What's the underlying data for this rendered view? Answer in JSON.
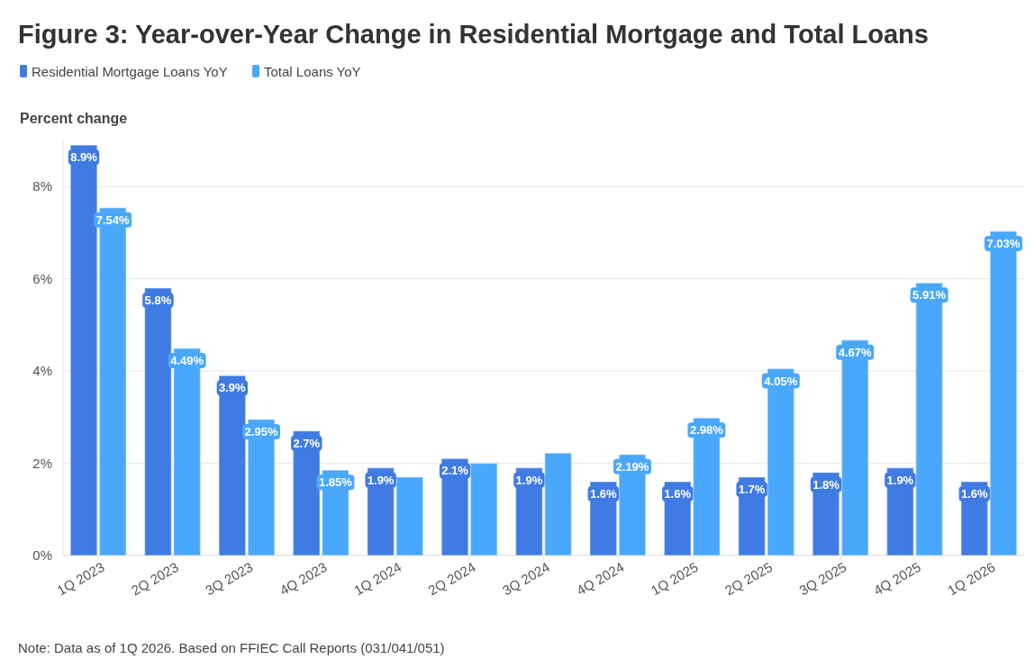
{
  "chart_data": {
    "type": "bar",
    "title": "Figure 3: Year-over-Year Change in Residential Mortgage and Total Loans",
    "ylabel": "Percent change",
    "categories": [
      "1Q 2023",
      "2Q 2023",
      "3Q 2023",
      "4Q 2023",
      "1Q 2024",
      "2Q 2024",
      "3Q 2024",
      "4Q 2024",
      "1Q 2025",
      "2Q 2025",
      "3Q 2025",
      "4Q 2025",
      "1Q 2026"
    ],
    "series": [
      {
        "name": "Residential Mortgage Loans YoY",
        "color": "#3f7be3",
        "values": [
          8.9,
          5.8,
          3.9,
          2.7,
          1.9,
          2.1,
          1.9,
          1.6,
          1.6,
          1.7,
          1.8,
          1.9,
          1.6
        ],
        "value_labels": [
          "8.9%",
          "5.8%",
          "3.9%",
          "2.7%",
          "1.9%",
          "2.1%",
          "1.9%",
          "1.6%",
          "1.6%",
          "1.7%",
          "1.8%",
          "1.9%",
          "1.6%"
        ]
      },
      {
        "name": "Total Loans YoY",
        "color": "#4aa8fc",
        "values": [
          7.54,
          4.49,
          2.95,
          1.85,
          1.7,
          2.0,
          2.22,
          2.19,
          2.98,
          4.05,
          4.67,
          5.91,
          7.03
        ],
        "value_labels": [
          "7.54%",
          "4.49%",
          "2.95%",
          "1.85%",
          null,
          null,
          null,
          "2.19%",
          "2.98%",
          "4.05%",
          "4.67%",
          "5.91%",
          "7.03%"
        ]
      }
    ],
    "ylim": [
      0,
      9
    ],
    "yticks": [
      {
        "value": 0,
        "label": "0%"
      },
      {
        "value": 2,
        "label": "2%"
      },
      {
        "value": 4,
        "label": "4%"
      },
      {
        "value": 6,
        "label": "6%"
      },
      {
        "value": 8,
        "label": "8%"
      }
    ],
    "grid": "y",
    "legend": "top left",
    "annotations": [
      "Note: Data as of 1Q 2026. Based on FFIEC Call Reports (031/041/051)"
    ]
  }
}
